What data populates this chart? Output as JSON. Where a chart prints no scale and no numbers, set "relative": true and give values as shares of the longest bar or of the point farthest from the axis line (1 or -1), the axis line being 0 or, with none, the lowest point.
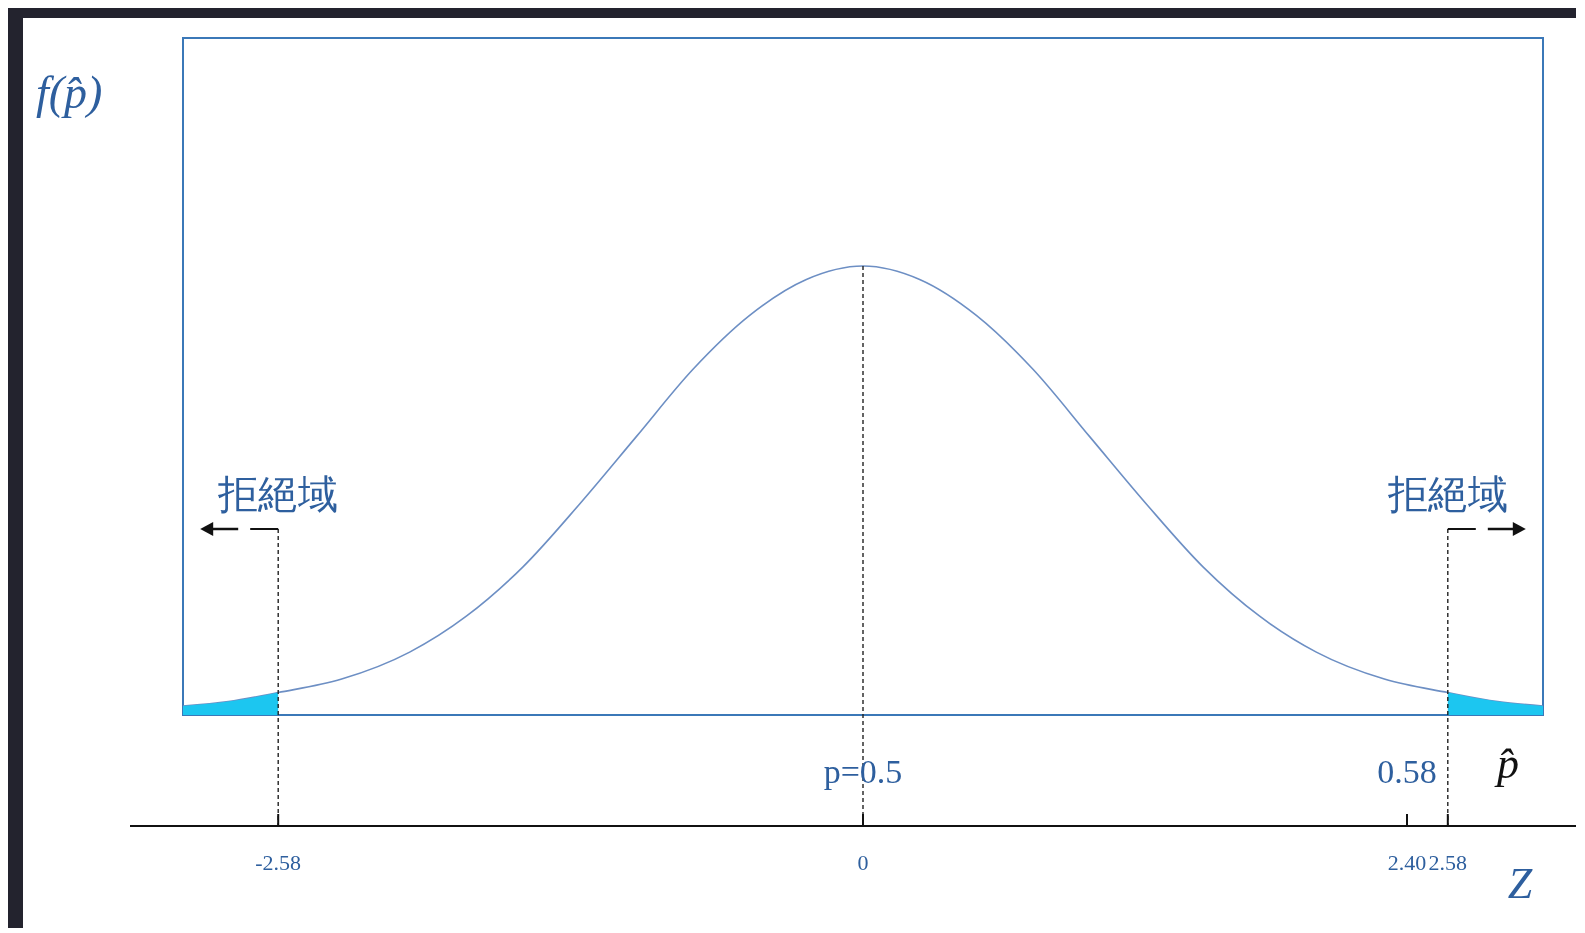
{
  "chart_data": {
    "type": "line",
    "relative": true,
    "ylabel": "f(p̂)",
    "xlabel": "Z",
    "x2label": "p̂",
    "xlim": [
      -3,
      3
    ],
    "xticks": [
      -2.58,
      0,
      {
        "value": 2.4,
        "label": "2.40"
      },
      2.58
    ],
    "x2lim": [
      0.4,
      0.6
    ],
    "x2ticks": [
      {
        "value": 0.5,
        "label": "p=0.5"
      },
      0.58
    ],
    "series": [
      {
        "color": "#6d8fc4",
        "x": [
          -3,
          -2.8,
          -2.58,
          -2.3,
          -2,
          -1.75,
          -1.5,
          -1.25,
          -1,
          -0.75,
          -0.5,
          -0.25,
          0,
          0.25,
          0.5,
          0.75,
          1,
          1.25,
          1.5,
          1.75,
          2,
          2.3,
          2.58,
          2.8,
          3
        ],
        "values": [
          0.02,
          0.03,
          0.05,
          0.08,
          0.14,
          0.22,
          0.33,
          0.47,
          0.62,
          0.77,
          0.89,
          0.97,
          1,
          0.97,
          0.89,
          0.77,
          0.62,
          0.47,
          0.33,
          0.22,
          0.14,
          0.08,
          0.05,
          0.03,
          0.02
        ]
      },
      {
        "type": "area",
        "color": "#1cc6f0",
        "x": [
          -3,
          -2.8,
          -2.58
        ],
        "values": [
          0.02,
          0.03,
          0.05
        ]
      },
      {
        "type": "area",
        "color": "#1cc6f0",
        "x": [
          2.58,
          2.8,
          3
        ],
        "values": [
          0.05,
          0.03,
          0.02
        ]
      }
    ],
    "ref_lines": [
      {
        "axis": "x",
        "value": -2.58,
        "label": "拒絕域",
        "line_style": "dashed"
      },
      {
        "axis": "x",
        "value": 0,
        "line_style": "dashed"
      },
      {
        "axis": "x",
        "value": 2.58,
        "label": "拒絕域",
        "line_style": "dashed"
      }
    ]
  }
}
